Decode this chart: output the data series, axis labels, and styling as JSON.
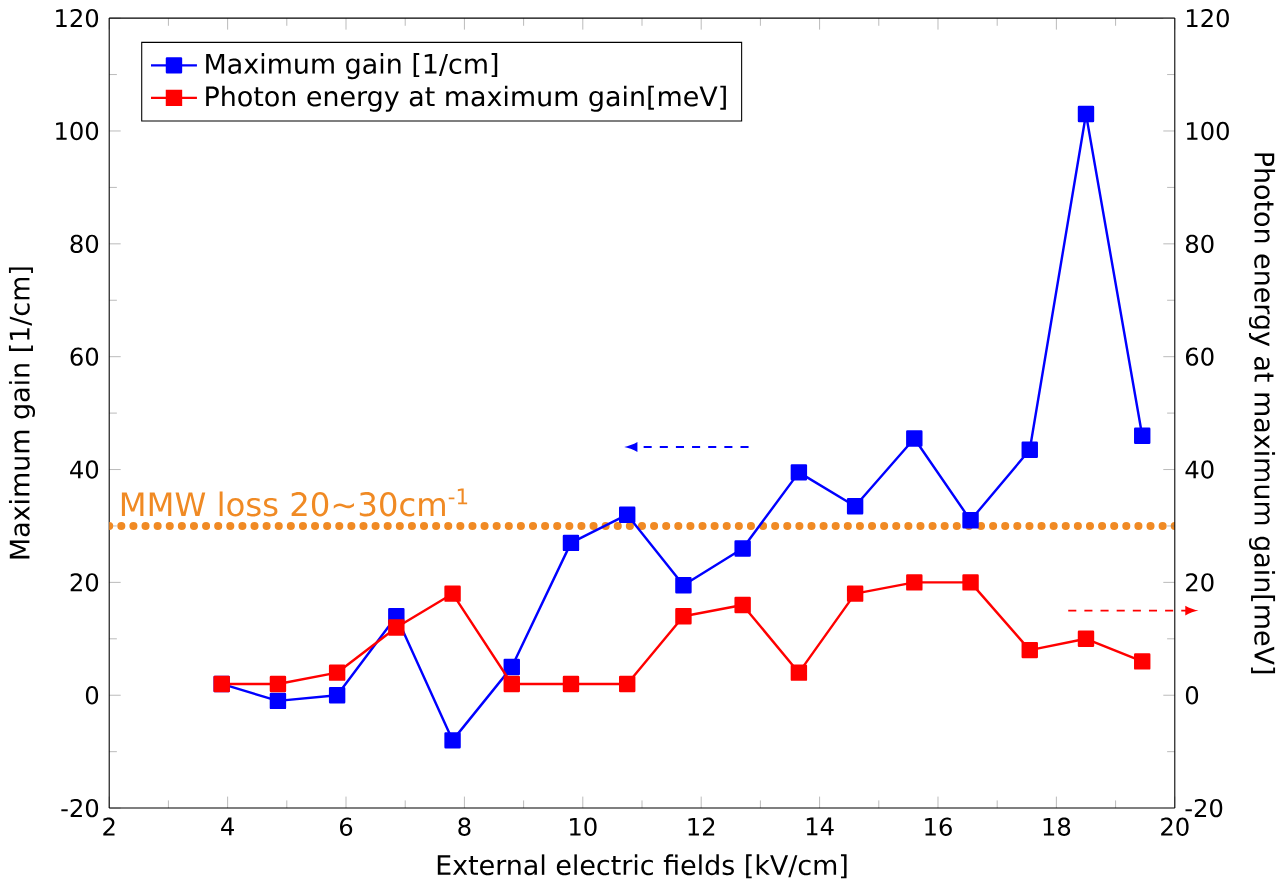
{
  "chart_data": {
    "type": "line",
    "xlabel": "External electric fields [kV/cm]",
    "ylabel": "Maximum gain [1/cm]",
    "y2label": "Photon energy at maximum gain[meV]",
    "xlim": [
      2,
      20
    ],
    "xticks": [
      2,
      4,
      6,
      8,
      10,
      12,
      14,
      16,
      18,
      20
    ],
    "ylim": [
      -20,
      120
    ],
    "yticks": [
      -20,
      0,
      20,
      40,
      60,
      80,
      100,
      120
    ],
    "y2lim": [
      -20,
      120
    ],
    "y2ticks": [
      -20,
      0,
      20,
      40,
      60,
      80,
      100,
      120
    ],
    "x": [
      3.9,
      4.85,
      5.85,
      6.85,
      7.8,
      8.8,
      9.8,
      10.75,
      11.7,
      12.7,
      13.65,
      14.6,
      15.6,
      16.55,
      17.55,
      18.5,
      19.45
    ],
    "series": [
      {
        "name": "Maximum gain [1/cm]",
        "color": "#0000ff",
        "values": [
          2,
          -1,
          0,
          14,
          -8,
          5,
          27,
          32,
          19.5,
          26,
          39.5,
          33.5,
          45.5,
          31,
          43.5,
          103,
          46
        ]
      },
      {
        "name": "Photon energy at maximum gain[meV]",
        "color": "#ff0000",
        "axis": "y2",
        "values": [
          2,
          2,
          4,
          12,
          18,
          2,
          2,
          2,
          14,
          16,
          4,
          18,
          20,
          20,
          8,
          10,
          6
        ]
      }
    ],
    "ref_lines": [
      {
        "axis": "y",
        "value": 30,
        "label": "MMW loss 20∼30cm$^{-1}$",
        "color": "#f08a24",
        "line_style": "dotted"
      }
    ],
    "legend": "top left",
    "marker": "square",
    "line_style": "solid",
    "grid": false
  }
}
